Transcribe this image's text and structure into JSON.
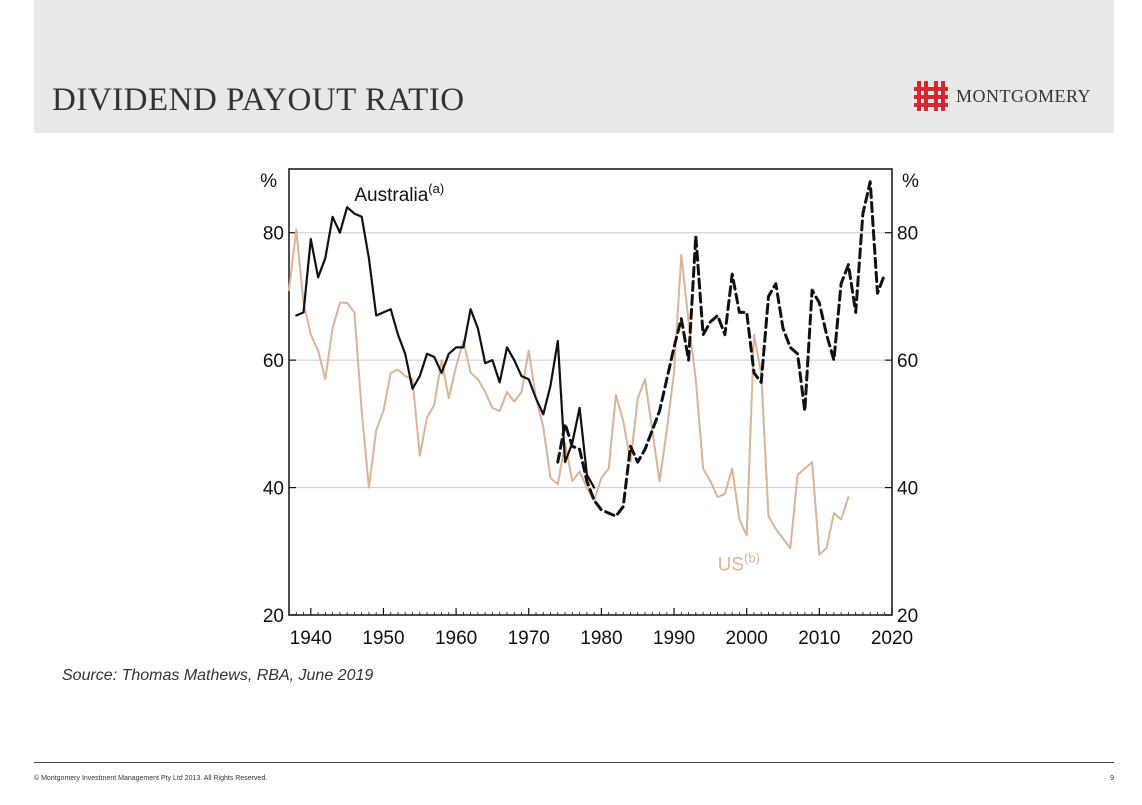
{
  "slide": {
    "title": "DIVIDEND PAYOUT RATIO",
    "logo_text": "MONTGOMERY",
    "source": "Source: Thomas Mathews, RBA, June 2019",
    "footer_copyright": "© Montgomery Investment Management Pty Ltd 2013. All Rights Reserved.",
    "page_number": "9"
  },
  "colors": {
    "australia": "#111111",
    "us": "#d8b59a",
    "logo_red": "#d72631",
    "header_band": "#e8e8e8"
  },
  "chart_data": {
    "type": "line",
    "xlim": [
      1937,
      2020
    ],
    "ylim": [
      20,
      90
    ],
    "y_ticks": [
      20,
      40,
      60,
      80
    ],
    "x_ticks": [
      1940,
      1950,
      1960,
      1970,
      1980,
      1990,
      2000,
      2010,
      2020
    ],
    "x_tick_labels": [
      "1940",
      "1950",
      "1960",
      "1970",
      "1980",
      "1990",
      "2000",
      "2010",
      "2020"
    ],
    "left_axis_unit": "%",
    "right_axis_unit": "%",
    "grid": true,
    "series": [
      {
        "name": "Australia",
        "superscript": "(a)",
        "style": "solid",
        "points": [
          [
            1938,
            67
          ],
          [
            1939,
            67.5
          ],
          [
            1940,
            79
          ],
          [
            1941,
            73
          ],
          [
            1942,
            76
          ],
          [
            1943,
            82.5
          ],
          [
            1944,
            80
          ],
          [
            1945,
            84
          ],
          [
            1946,
            83
          ],
          [
            1947,
            82.5
          ],
          [
            1948,
            76
          ],
          [
            1949,
            67
          ],
          [
            1950,
            67.5
          ],
          [
            1951,
            68
          ],
          [
            1952,
            64
          ],
          [
            1953,
            61
          ],
          [
            1954,
            55.5
          ],
          [
            1955,
            57.5
          ],
          [
            1956,
            61
          ],
          [
            1957,
            60.5
          ],
          [
            1958,
            58
          ],
          [
            1959,
            61
          ],
          [
            1960,
            62
          ],
          [
            1961,
            62
          ],
          [
            1962,
            68
          ],
          [
            1963,
            65
          ],
          [
            1964,
            59.5
          ],
          [
            1965,
            60
          ],
          [
            1966,
            56.5
          ],
          [
            1967,
            62
          ],
          [
            1968,
            60
          ],
          [
            1969,
            57.5
          ],
          [
            1970,
            57
          ],
          [
            1971,
            54
          ],
          [
            1972,
            51.5
          ],
          [
            1973,
            56
          ],
          [
            1974,
            63
          ],
          [
            1975,
            44
          ],
          [
            1976,
            47
          ],
          [
            1977,
            52.5
          ],
          [
            1978,
            42
          ],
          [
            1979,
            40
          ]
        ]
      },
      {
        "name": "Australia",
        "style": "dashed",
        "points": [
          [
            1974,
            44
          ],
          [
            1975,
            50
          ],
          [
            1976,
            46.5
          ],
          [
            1977,
            46
          ],
          [
            1978,
            41
          ],
          [
            1979,
            38
          ],
          [
            1980,
            36.5
          ],
          [
            1981,
            36
          ],
          [
            1982,
            35.5
          ],
          [
            1983,
            37
          ],
          [
            1984,
            46.5
          ],
          [
            1985,
            44
          ],
          [
            1986,
            46
          ],
          [
            1987,
            49
          ],
          [
            1988,
            52
          ],
          [
            1989,
            57
          ],
          [
            1990,
            62
          ],
          [
            1991,
            66.5
          ],
          [
            1992,
            60
          ],
          [
            1993,
            79.5
          ],
          [
            1994,
            64
          ],
          [
            1995,
            66
          ],
          [
            1996,
            67
          ],
          [
            1997,
            64
          ],
          [
            1998,
            73.5
          ],
          [
            1999,
            67.5
          ],
          [
            2000,
            67.5
          ],
          [
            2001,
            58
          ],
          [
            2002,
            56.5
          ],
          [
            2003,
            70
          ],
          [
            2004,
            72
          ],
          [
            2005,
            65
          ],
          [
            2006,
            62
          ],
          [
            2007,
            61
          ],
          [
            2008,
            52
          ],
          [
            2009,
            71
          ],
          [
            2010,
            69
          ],
          [
            2011,
            64
          ],
          [
            2012,
            60
          ],
          [
            2013,
            72
          ],
          [
            2014,
            75
          ],
          [
            2015,
            67.5
          ],
          [
            2016,
            83
          ],
          [
            2017,
            88
          ],
          [
            2018,
            70.5
          ],
          [
            2019,
            73.5
          ]
        ]
      },
      {
        "name": "US",
        "superscript": "(b)",
        "style": "solid",
        "points": [
          [
            1937,
            71
          ],
          [
            1938,
            80.5
          ],
          [
            1939,
            69
          ],
          [
            1940,
            64
          ],
          [
            1941,
            61.5
          ],
          [
            1942,
            57
          ],
          [
            1943,
            65
          ],
          [
            1944,
            69
          ],
          [
            1945,
            69
          ],
          [
            1946,
            67.5
          ],
          [
            1947,
            52
          ],
          [
            1948,
            40
          ],
          [
            1949,
            49
          ],
          [
            1950,
            52
          ],
          [
            1951,
            58
          ],
          [
            1952,
            58.5
          ],
          [
            1953,
            57.5
          ],
          [
            1954,
            57
          ],
          [
            1955,
            45
          ],
          [
            1956,
            51
          ],
          [
            1957,
            53
          ],
          [
            1958,
            60
          ],
          [
            1959,
            54
          ],
          [
            1960,
            59
          ],
          [
            1961,
            63
          ],
          [
            1962,
            58
          ],
          [
            1963,
            57
          ],
          [
            1964,
            55
          ],
          [
            1965,
            52.5
          ],
          [
            1966,
            52
          ],
          [
            1967,
            55
          ],
          [
            1968,
            53.5
          ],
          [
            1969,
            55
          ],
          [
            1970,
            61.5
          ],
          [
            1971,
            54
          ],
          [
            1972,
            49.5
          ],
          [
            1973,
            41.5
          ],
          [
            1974,
            40.5
          ],
          [
            1975,
            47
          ],
          [
            1976,
            41
          ],
          [
            1977,
            42.5
          ],
          [
            1978,
            40
          ],
          [
            1979,
            38
          ],
          [
            1980,
            41.5
          ],
          [
            1981,
            43
          ],
          [
            1982,
            54.5
          ],
          [
            1983,
            50.5
          ],
          [
            1984,
            44
          ],
          [
            1985,
            54
          ],
          [
            1986,
            57
          ],
          [
            1987,
            49
          ],
          [
            1988,
            41
          ],
          [
            1989,
            49
          ],
          [
            1990,
            58
          ],
          [
            1991,
            76.5
          ],
          [
            1992,
            66
          ],
          [
            1993,
            57
          ],
          [
            1994,
            43
          ],
          [
            1995,
            41
          ],
          [
            1996,
            38.5
          ],
          [
            1997,
            39
          ],
          [
            1998,
            43
          ],
          [
            1999,
            35
          ],
          [
            2000,
            32.5
          ],
          [
            2001,
            64
          ],
          [
            2002,
            58
          ],
          [
            2003,
            35.5
          ],
          [
            2004,
            33.5
          ],
          [
            2005,
            32
          ],
          [
            2006,
            30.5
          ],
          [
            2007,
            42
          ],
          [
            2008,
            43
          ],
          [
            2009,
            44
          ],
          [
            2010,
            29.5
          ],
          [
            2011,
            30.5
          ],
          [
            2012,
            36
          ],
          [
            2013,
            35
          ],
          [
            2014,
            38.5
          ]
        ]
      }
    ],
    "annotations": [
      {
        "text": "Australia",
        "superscript": "(a)",
        "x": 1946,
        "y": 85,
        "series": 0
      },
      {
        "text": "US",
        "superscript": "(b)",
        "x": 1996,
        "y": 27,
        "series": 2
      }
    ]
  }
}
